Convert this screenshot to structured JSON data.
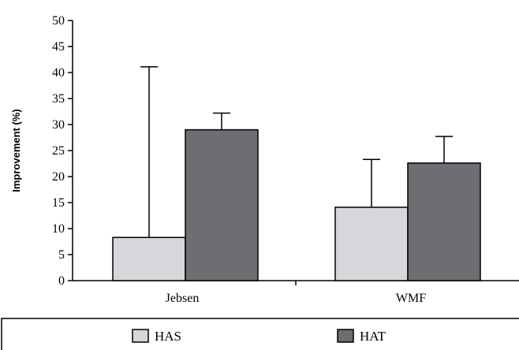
{
  "chart_data": {
    "type": "bar",
    "title": "",
    "ylabel": "Improvement (%)",
    "xlabel": "",
    "ylim": [
      0,
      50
    ],
    "yticks": [
      0,
      5,
      10,
      15,
      20,
      25,
      30,
      35,
      40,
      45,
      50
    ],
    "categories": [
      "Jebsen",
      "WMF"
    ],
    "series": [
      {
        "name": "HAS",
        "color": "#d6d7da",
        "values": [
          8.3,
          14.1
        ],
        "error": [
          32.8,
          9.2
        ]
      },
      {
        "name": "HAT",
        "color": "#6e6d72",
        "values": [
          29.0,
          22.6
        ],
        "error": [
          3.2,
          5.1
        ]
      }
    ],
    "grid": false,
    "legend_position": "bottom"
  }
}
